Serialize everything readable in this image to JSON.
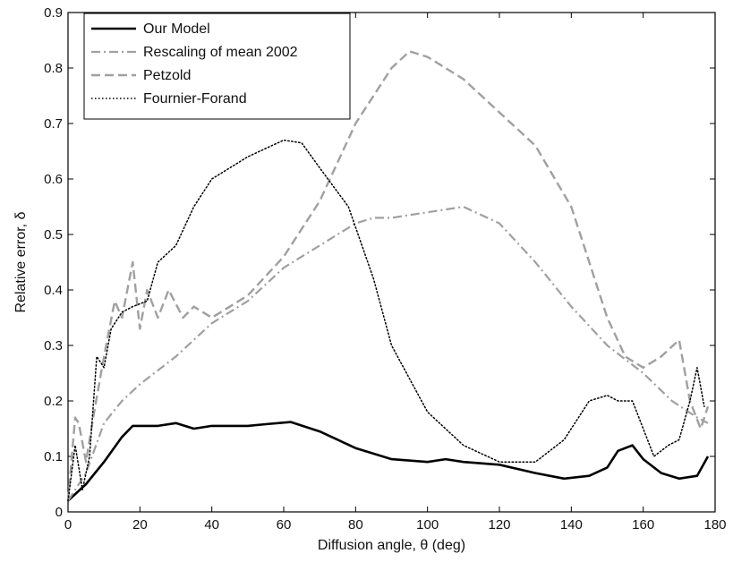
{
  "chart_data": {
    "type": "line",
    "xlabel": "Diffusion angle, θ (deg)",
    "ylabel": "Relative error, δ",
    "xlim": [
      0,
      180
    ],
    "ylim": [
      0,
      0.9
    ],
    "x_ticks": [
      "0",
      "20",
      "40",
      "60",
      "80",
      "100",
      "120",
      "140",
      "160",
      "180"
    ],
    "y_ticks": [
      "0",
      "0.1",
      "0.2",
      "0.3",
      "0.4",
      "0.5",
      "0.6",
      "0.7",
      "0.8",
      "0.9"
    ],
    "grid": false,
    "legend_position": "top-left",
    "series": [
      {
        "name": "Our Model",
        "style": "solid",
        "color": "#000000",
        "points": [
          [
            0,
            0.02
          ],
          [
            5,
            0.05
          ],
          [
            10,
            0.09
          ],
          [
            15,
            0.135
          ],
          [
            18,
            0.155
          ],
          [
            25,
            0.155
          ],
          [
            30,
            0.16
          ],
          [
            35,
            0.15
          ],
          [
            40,
            0.155
          ],
          [
            50,
            0.155
          ],
          [
            55,
            0.158
          ],
          [
            62,
            0.162
          ],
          [
            70,
            0.145
          ],
          [
            80,
            0.115
          ],
          [
            90,
            0.095
          ],
          [
            100,
            0.09
          ],
          [
            105,
            0.095
          ],
          [
            110,
            0.09
          ],
          [
            120,
            0.085
          ],
          [
            130,
            0.07
          ],
          [
            138,
            0.06
          ],
          [
            145,
            0.065
          ],
          [
            150,
            0.08
          ],
          [
            153,
            0.11
          ],
          [
            157,
            0.12
          ],
          [
            160,
            0.095
          ],
          [
            165,
            0.07
          ],
          [
            170,
            0.06
          ],
          [
            175,
            0.065
          ],
          [
            178,
            0.1
          ]
        ]
      },
      {
        "name": "Rescaling of mean 2002",
        "style": "dashdot",
        "color": "#a0a0a0",
        "points": [
          [
            0,
            0.02
          ],
          [
            5,
            0.07
          ],
          [
            10,
            0.16
          ],
          [
            15,
            0.2
          ],
          [
            20,
            0.23
          ],
          [
            30,
            0.28
          ],
          [
            40,
            0.34
          ],
          [
            50,
            0.38
          ],
          [
            60,
            0.44
          ],
          [
            70,
            0.48
          ],
          [
            80,
            0.52
          ],
          [
            85,
            0.53
          ],
          [
            90,
            0.53
          ],
          [
            100,
            0.54
          ],
          [
            110,
            0.55
          ],
          [
            120,
            0.52
          ],
          [
            130,
            0.45
          ],
          [
            140,
            0.37
          ],
          [
            150,
            0.3
          ],
          [
            160,
            0.25
          ],
          [
            168,
            0.2
          ],
          [
            175,
            0.17
          ],
          [
            178,
            0.16
          ]
        ]
      },
      {
        "name": "Petzold",
        "style": "dashed",
        "color": "#a0a0a0",
        "points": [
          [
            0,
            0.02
          ],
          [
            2,
            0.17
          ],
          [
            3,
            0.16
          ],
          [
            5,
            0.09
          ],
          [
            7,
            0.17
          ],
          [
            10,
            0.28
          ],
          [
            13,
            0.38
          ],
          [
            15,
            0.35
          ],
          [
            18,
            0.45
          ],
          [
            20,
            0.33
          ],
          [
            22,
            0.4
          ],
          [
            25,
            0.35
          ],
          [
            28,
            0.4
          ],
          [
            32,
            0.35
          ],
          [
            35,
            0.37
          ],
          [
            40,
            0.35
          ],
          [
            50,
            0.39
          ],
          [
            60,
            0.46
          ],
          [
            70,
            0.56
          ],
          [
            80,
            0.7
          ],
          [
            90,
            0.8
          ],
          [
            95,
            0.83
          ],
          [
            100,
            0.82
          ],
          [
            110,
            0.78
          ],
          [
            120,
            0.72
          ],
          [
            130,
            0.66
          ],
          [
            140,
            0.55
          ],
          [
            145,
            0.45
          ],
          [
            150,
            0.35
          ],
          [
            155,
            0.28
          ],
          [
            160,
            0.26
          ],
          [
            165,
            0.28
          ],
          [
            170,
            0.31
          ],
          [
            173,
            0.2
          ],
          [
            176,
            0.15
          ],
          [
            178,
            0.19
          ]
        ]
      },
      {
        "name": "Fournier-Forand",
        "style": "dotted",
        "color": "#000000",
        "points": [
          [
            0,
            0.02
          ],
          [
            2,
            0.12
          ],
          [
            4,
            0.04
          ],
          [
            6,
            0.1
          ],
          [
            8,
            0.28
          ],
          [
            10,
            0.26
          ],
          [
            12,
            0.33
          ],
          [
            15,
            0.36
          ],
          [
            18,
            0.37
          ],
          [
            22,
            0.38
          ],
          [
            25,
            0.45
          ],
          [
            30,
            0.48
          ],
          [
            35,
            0.55
          ],
          [
            40,
            0.6
          ],
          [
            50,
            0.64
          ],
          [
            60,
            0.67
          ],
          [
            65,
            0.665
          ],
          [
            70,
            0.62
          ],
          [
            78,
            0.55
          ],
          [
            85,
            0.42
          ],
          [
            90,
            0.3
          ],
          [
            100,
            0.18
          ],
          [
            110,
            0.12
          ],
          [
            120,
            0.09
          ],
          [
            130,
            0.09
          ],
          [
            138,
            0.13
          ],
          [
            145,
            0.2
          ],
          [
            150,
            0.21
          ],
          [
            153,
            0.2
          ],
          [
            157,
            0.2
          ],
          [
            160,
            0.15
          ],
          [
            163,
            0.1
          ],
          [
            167,
            0.12
          ],
          [
            170,
            0.13
          ],
          [
            173,
            0.2
          ],
          [
            175,
            0.26
          ],
          [
            177,
            0.19
          ]
        ]
      }
    ]
  }
}
